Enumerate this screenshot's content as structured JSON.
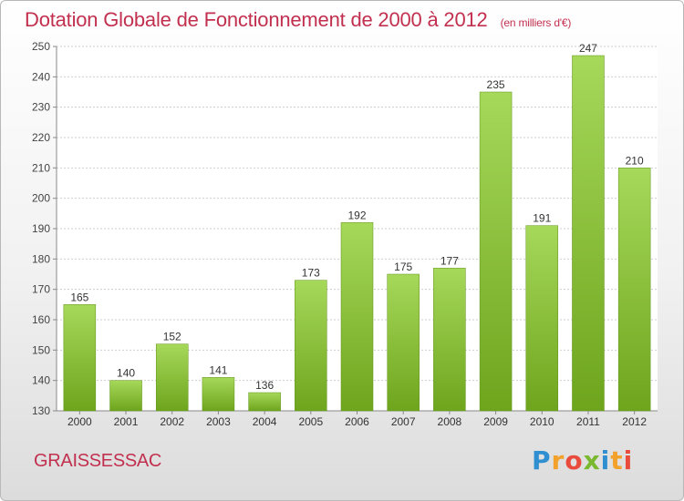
{
  "title": "Dotation Globale de Fonctionnement de 2000 à 2012",
  "subtitle": "(en milliers d'€)",
  "commune": "GRAISSESSAC",
  "logo": {
    "letters": [
      "P",
      "r",
      "o",
      "x",
      "i",
      "t",
      "i"
    ],
    "colors": [
      "#2f8fd0",
      "#f2a12b",
      "#e94b3c",
      "#7ab82f",
      "#2f8fd0",
      "#f2a12b",
      "#e94b3c"
    ]
  },
  "colors": {
    "bar_top": "#a6d85a",
    "bar_bottom": "#6ea51d",
    "title": "#c2304f"
  },
  "chart_data": {
    "type": "bar",
    "categories": [
      "2000",
      "2001",
      "2002",
      "2003",
      "2004",
      "2005",
      "2006",
      "2007",
      "2008",
      "2009",
      "2010",
      "2011",
      "2012"
    ],
    "values": [
      165,
      140,
      152,
      141,
      136,
      173,
      192,
      175,
      177,
      235,
      191,
      247,
      210
    ],
    "ylim": [
      130,
      250
    ],
    "yticks": [
      130,
      140,
      150,
      160,
      170,
      180,
      190,
      200,
      210,
      220,
      230,
      240,
      250
    ],
    "grid": true,
    "data_labels": true
  }
}
